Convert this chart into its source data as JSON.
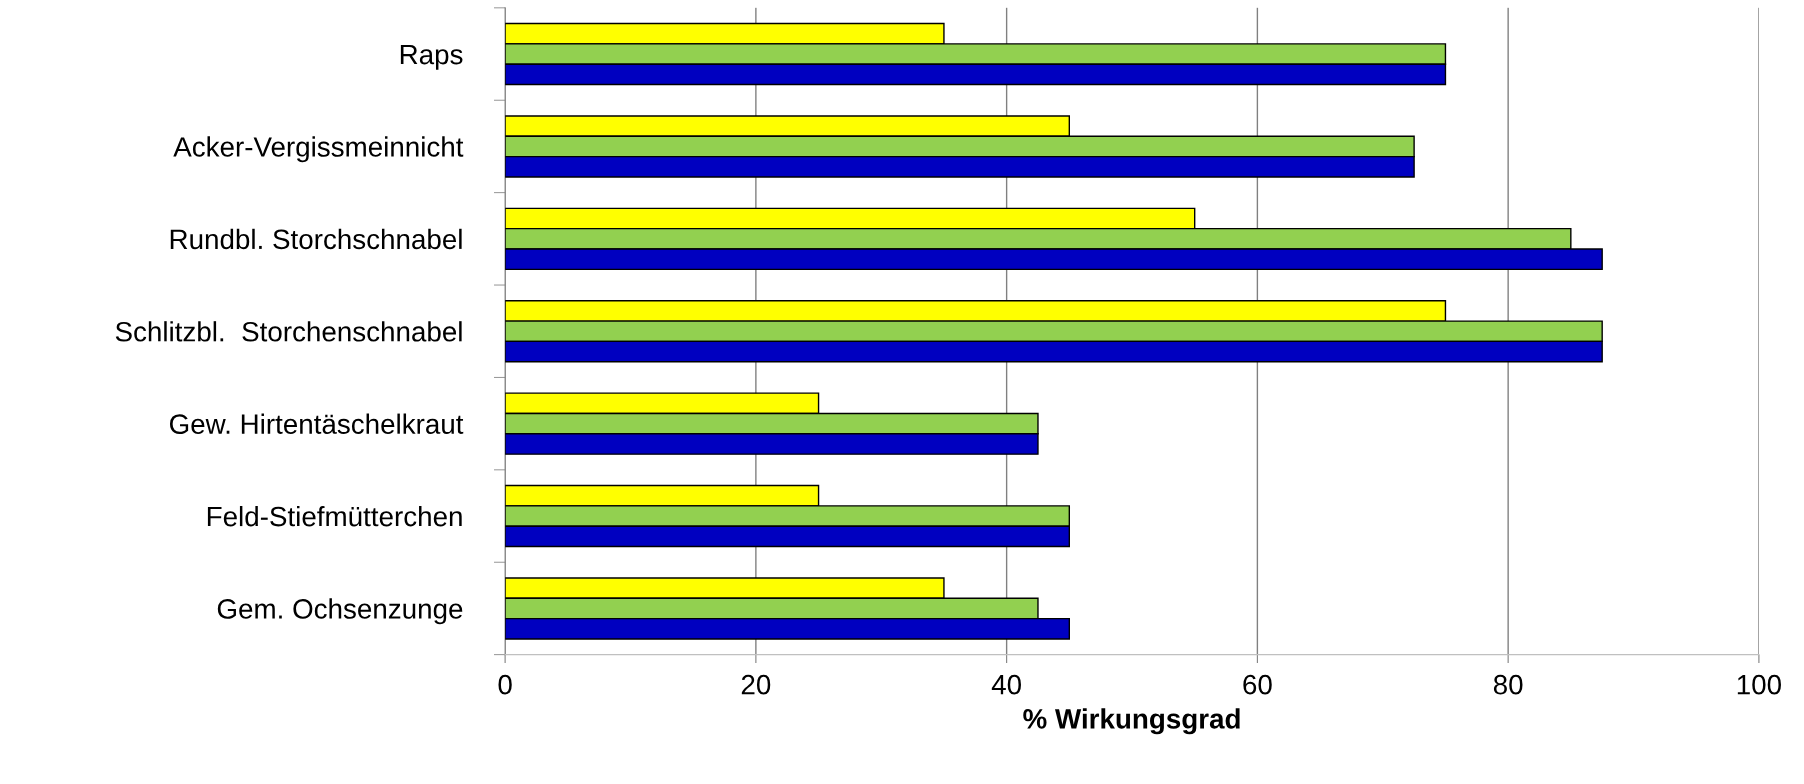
{
  "chart_data": {
    "type": "bar",
    "orientation": "horizontal",
    "xlabel": "% Wirkungsgrad",
    "categories": [
      "Raps",
      "Acker-Vergissmeinnicht",
      "Rundbl. Storchschnabel",
      "Schlitzbl.  Storchenschnabel",
      "Gew. Hirtentäschelkraut",
      "Feld-Stiefmütterchen",
      "Gem. Ochsenzunge"
    ],
    "series": [
      {
        "color": "#ffff00",
        "values": [
          35,
          45,
          55,
          75,
          25,
          25,
          35
        ]
      },
      {
        "color": "#92d050",
        "values": [
          75,
          72.5,
          85,
          87.5,
          42.5,
          45,
          42.5
        ]
      },
      {
        "color": "#0000c0",
        "values": [
          75,
          72.5,
          87.5,
          87.5,
          42.5,
          45,
          45
        ]
      }
    ],
    "xlim": [
      0,
      100
    ],
    "xticks": [
      0,
      20,
      40,
      60,
      80,
      100
    ],
    "grid": "x",
    "legend": false
  }
}
